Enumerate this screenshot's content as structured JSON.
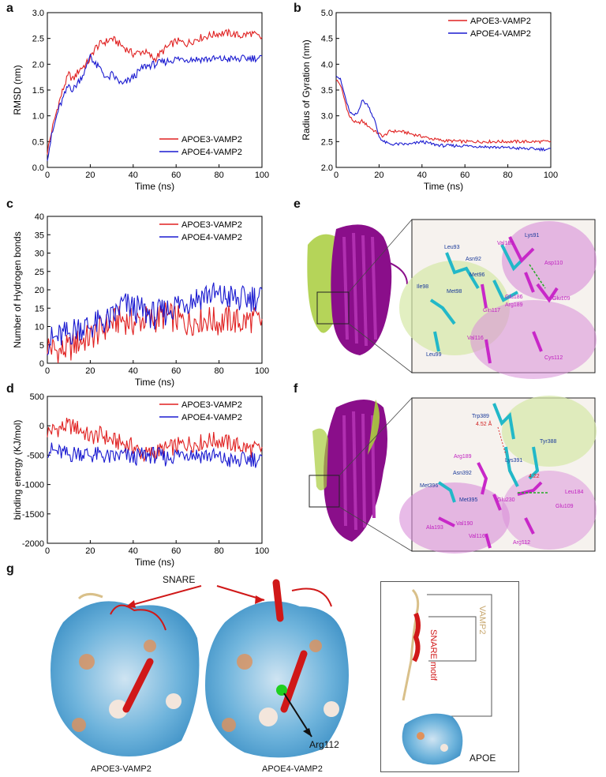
{
  "panels": {
    "a": "a",
    "b": "b",
    "c": "c",
    "d": "d",
    "e": "e",
    "f": "f",
    "g": "g"
  },
  "colors": {
    "apoe3": "#e02020",
    "apoe4": "#1a1ad0"
  },
  "chart_data": [
    {
      "id": "a",
      "type": "line",
      "xlabel": "Time (ns)",
      "ylabel": "RMSD (nm)",
      "xlim": [
        0,
        100
      ],
      "ylim": [
        0,
        3.0
      ],
      "xticks": [
        0,
        20,
        40,
        60,
        80,
        100
      ],
      "yticks": [
        0.0,
        0.5,
        1.0,
        1.5,
        2.0,
        2.5,
        3.0
      ],
      "ytick_labels": [
        "0.0",
        "0.5",
        "1.0",
        "1.5",
        "2.0",
        "2.5",
        "3.0"
      ],
      "legend": "bottom-right",
      "series": [
        {
          "name": "APOE3-VAMP2",
          "x": [
            0,
            2,
            5,
            8,
            10,
            12,
            15,
            18,
            20,
            22,
            25,
            28,
            30,
            35,
            40,
            45,
            50,
            55,
            60,
            65,
            70,
            75,
            80,
            85,
            90,
            95,
            100
          ],
          "y": [
            0.3,
            0.7,
            1.2,
            1.6,
            1.8,
            1.7,
            1.9,
            2.0,
            2.1,
            2.3,
            2.4,
            2.45,
            2.5,
            2.35,
            2.2,
            2.25,
            2.1,
            2.3,
            2.45,
            2.4,
            2.5,
            2.55,
            2.6,
            2.6,
            2.55,
            2.6,
            2.5
          ]
        },
        {
          "name": "APOE4-VAMP2",
          "x": [
            0,
            2,
            5,
            8,
            10,
            12,
            15,
            18,
            20,
            22,
            25,
            28,
            30,
            35,
            40,
            45,
            50,
            55,
            60,
            65,
            70,
            75,
            80,
            85,
            90,
            95,
            100
          ],
          "y": [
            0.2,
            0.6,
            1.1,
            1.4,
            1.6,
            1.5,
            1.7,
            1.9,
            2.2,
            2.0,
            1.9,
            1.7,
            1.8,
            1.6,
            1.75,
            1.95,
            2.0,
            2.05,
            2.1,
            2.1,
            2.1,
            2.1,
            2.1,
            2.1,
            2.1,
            2.12,
            2.12
          ]
        }
      ]
    },
    {
      "id": "b",
      "type": "line",
      "xlabel": "Time (ns)",
      "ylabel": "Radius of Gyration (nm)",
      "xlim": [
        0,
        100
      ],
      "ylim": [
        2.0,
        5.0
      ],
      "xticks": [
        0,
        20,
        40,
        60,
        80,
        100
      ],
      "yticks": [
        2.0,
        2.5,
        3.0,
        3.5,
        4.0,
        4.5,
        5.0
      ],
      "ytick_labels": [
        "2.0",
        "2.5",
        "3.0",
        "3.5",
        "4.0",
        "4.5",
        "5.0"
      ],
      "legend": "top-right",
      "series": [
        {
          "name": "APOE3-VAMP2",
          "x": [
            0,
            2,
            4,
            6,
            8,
            10,
            12,
            15,
            18,
            20,
            22,
            25,
            30,
            35,
            40,
            45,
            50,
            60,
            70,
            80,
            90,
            100
          ],
          "y": [
            3.7,
            3.6,
            3.3,
            3.0,
            2.9,
            2.85,
            2.9,
            2.8,
            2.7,
            2.65,
            2.6,
            2.7,
            2.7,
            2.65,
            2.6,
            2.55,
            2.52,
            2.5,
            2.5,
            2.5,
            2.5,
            2.5
          ]
        },
        {
          "name": "APOE4-VAMP2",
          "x": [
            0,
            2,
            4,
            6,
            8,
            10,
            12,
            15,
            18,
            20,
            22,
            25,
            30,
            35,
            40,
            45,
            50,
            60,
            70,
            80,
            90,
            100
          ],
          "y": [
            3.8,
            3.7,
            3.4,
            3.1,
            3.0,
            3.05,
            3.3,
            3.2,
            2.9,
            2.6,
            2.5,
            2.45,
            2.45,
            2.45,
            2.5,
            2.45,
            2.42,
            2.42,
            2.4,
            2.38,
            2.36,
            2.35
          ]
        }
      ]
    },
    {
      "id": "c",
      "type": "line",
      "xlabel": "Time (ns)",
      "ylabel": "Number of Hydrogen bonds",
      "xlim": [
        0,
        100
      ],
      "ylim": [
        0,
        40
      ],
      "xticks": [
        0,
        20,
        40,
        60,
        80,
        100
      ],
      "yticks": [
        0,
        5,
        10,
        15,
        20,
        25,
        30,
        35,
        40
      ],
      "ytick_labels": [
        "0",
        "5",
        "10",
        "15",
        "20",
        "25",
        "30",
        "35",
        "40"
      ],
      "legend": "top-right",
      "series": [
        {
          "name": "APOE3-VAMP2",
          "x": [
            0,
            5,
            10,
            15,
            20,
            25,
            30,
            35,
            40,
            45,
            50,
            55,
            60,
            65,
            70,
            75,
            80,
            85,
            90,
            95,
            100
          ],
          "y": [
            5,
            3,
            4,
            6,
            7,
            9,
            11,
            12,
            11,
            12,
            12,
            13,
            12,
            11,
            12,
            12,
            11,
            12,
            11,
            12,
            11
          ]
        },
        {
          "name": "APOE4-VAMP2",
          "x": [
            0,
            5,
            10,
            15,
            20,
            25,
            30,
            35,
            40,
            45,
            50,
            55,
            60,
            65,
            70,
            75,
            80,
            85,
            90,
            95,
            100
          ],
          "y": [
            6,
            7,
            8,
            10,
            10,
            11,
            12,
            16,
            15,
            14,
            13,
            14,
            16,
            17,
            18,
            19,
            18,
            18,
            17,
            18,
            18
          ]
        }
      ]
    },
    {
      "id": "d",
      "type": "line",
      "xlabel": "Time (ns)",
      "ylabel": "binding energy (KJ/mol)",
      "xlim": [
        0,
        100
      ],
      "ylim": [
        -2000,
        500
      ],
      "xticks": [
        0,
        20,
        40,
        60,
        80,
        100
      ],
      "yticks": [
        -2000,
        -1500,
        -1000,
        -500,
        0,
        500
      ],
      "ytick_labels": [
        "-2000",
        "-1500",
        "-1000",
        "-500",
        "0",
        "500"
      ],
      "legend": "top-right",
      "series": [
        {
          "name": "APOE3-VAMP2",
          "x": [
            0,
            5,
            10,
            15,
            20,
            25,
            30,
            35,
            40,
            45,
            50,
            55,
            60,
            65,
            70,
            75,
            80,
            85,
            90,
            95,
            100
          ],
          "y": [
            -100,
            -50,
            0,
            -50,
            -200,
            -150,
            -250,
            -300,
            -350,
            -500,
            -450,
            -400,
            -350,
            -300,
            -300,
            -250,
            -250,
            -300,
            -350,
            -400,
            -400
          ]
        },
        {
          "name": "APOE4-VAMP2",
          "x": [
            0,
            5,
            10,
            15,
            20,
            25,
            30,
            35,
            40,
            45,
            50,
            55,
            60,
            65,
            70,
            75,
            80,
            85,
            90,
            95,
            100
          ],
          "y": [
            -400,
            -450,
            -500,
            -450,
            -500,
            -500,
            -550,
            -500,
            -550,
            -500,
            -500,
            -550,
            -500,
            -450,
            -500,
            -500,
            -550,
            -600,
            -600,
            -550,
            -600
          ]
        }
      ]
    }
  ],
  "panel_e_labels": [
    "Leu93",
    "Lys91",
    "Val185",
    "Asn92",
    "Asp110",
    "Met96",
    "Ile98",
    "Met98",
    "Glu186",
    "Arg189",
    "Glu109",
    "Gln117",
    "Val116",
    "Leu99",
    "Cys112"
  ],
  "panel_f_labels": [
    "Trp389",
    "4.52 Å",
    "Tyr388",
    "Arg189",
    "Lys391",
    "Asn392",
    "4.22",
    "Met396",
    "Met395",
    "Glu230",
    "Leu184",
    "Glu109",
    "Ala193",
    "Val190",
    "Val116",
    "Arg112"
  ],
  "panel_g": {
    "snare": "SNARE",
    "left_caption": "APOE3-VAMP2",
    "right_caption": "APOE4-VAMP2",
    "arg112": "Arg112",
    "snare_motif": "SNARE motif",
    "vamp2": "VAMP2",
    "apoe": "APOE"
  }
}
